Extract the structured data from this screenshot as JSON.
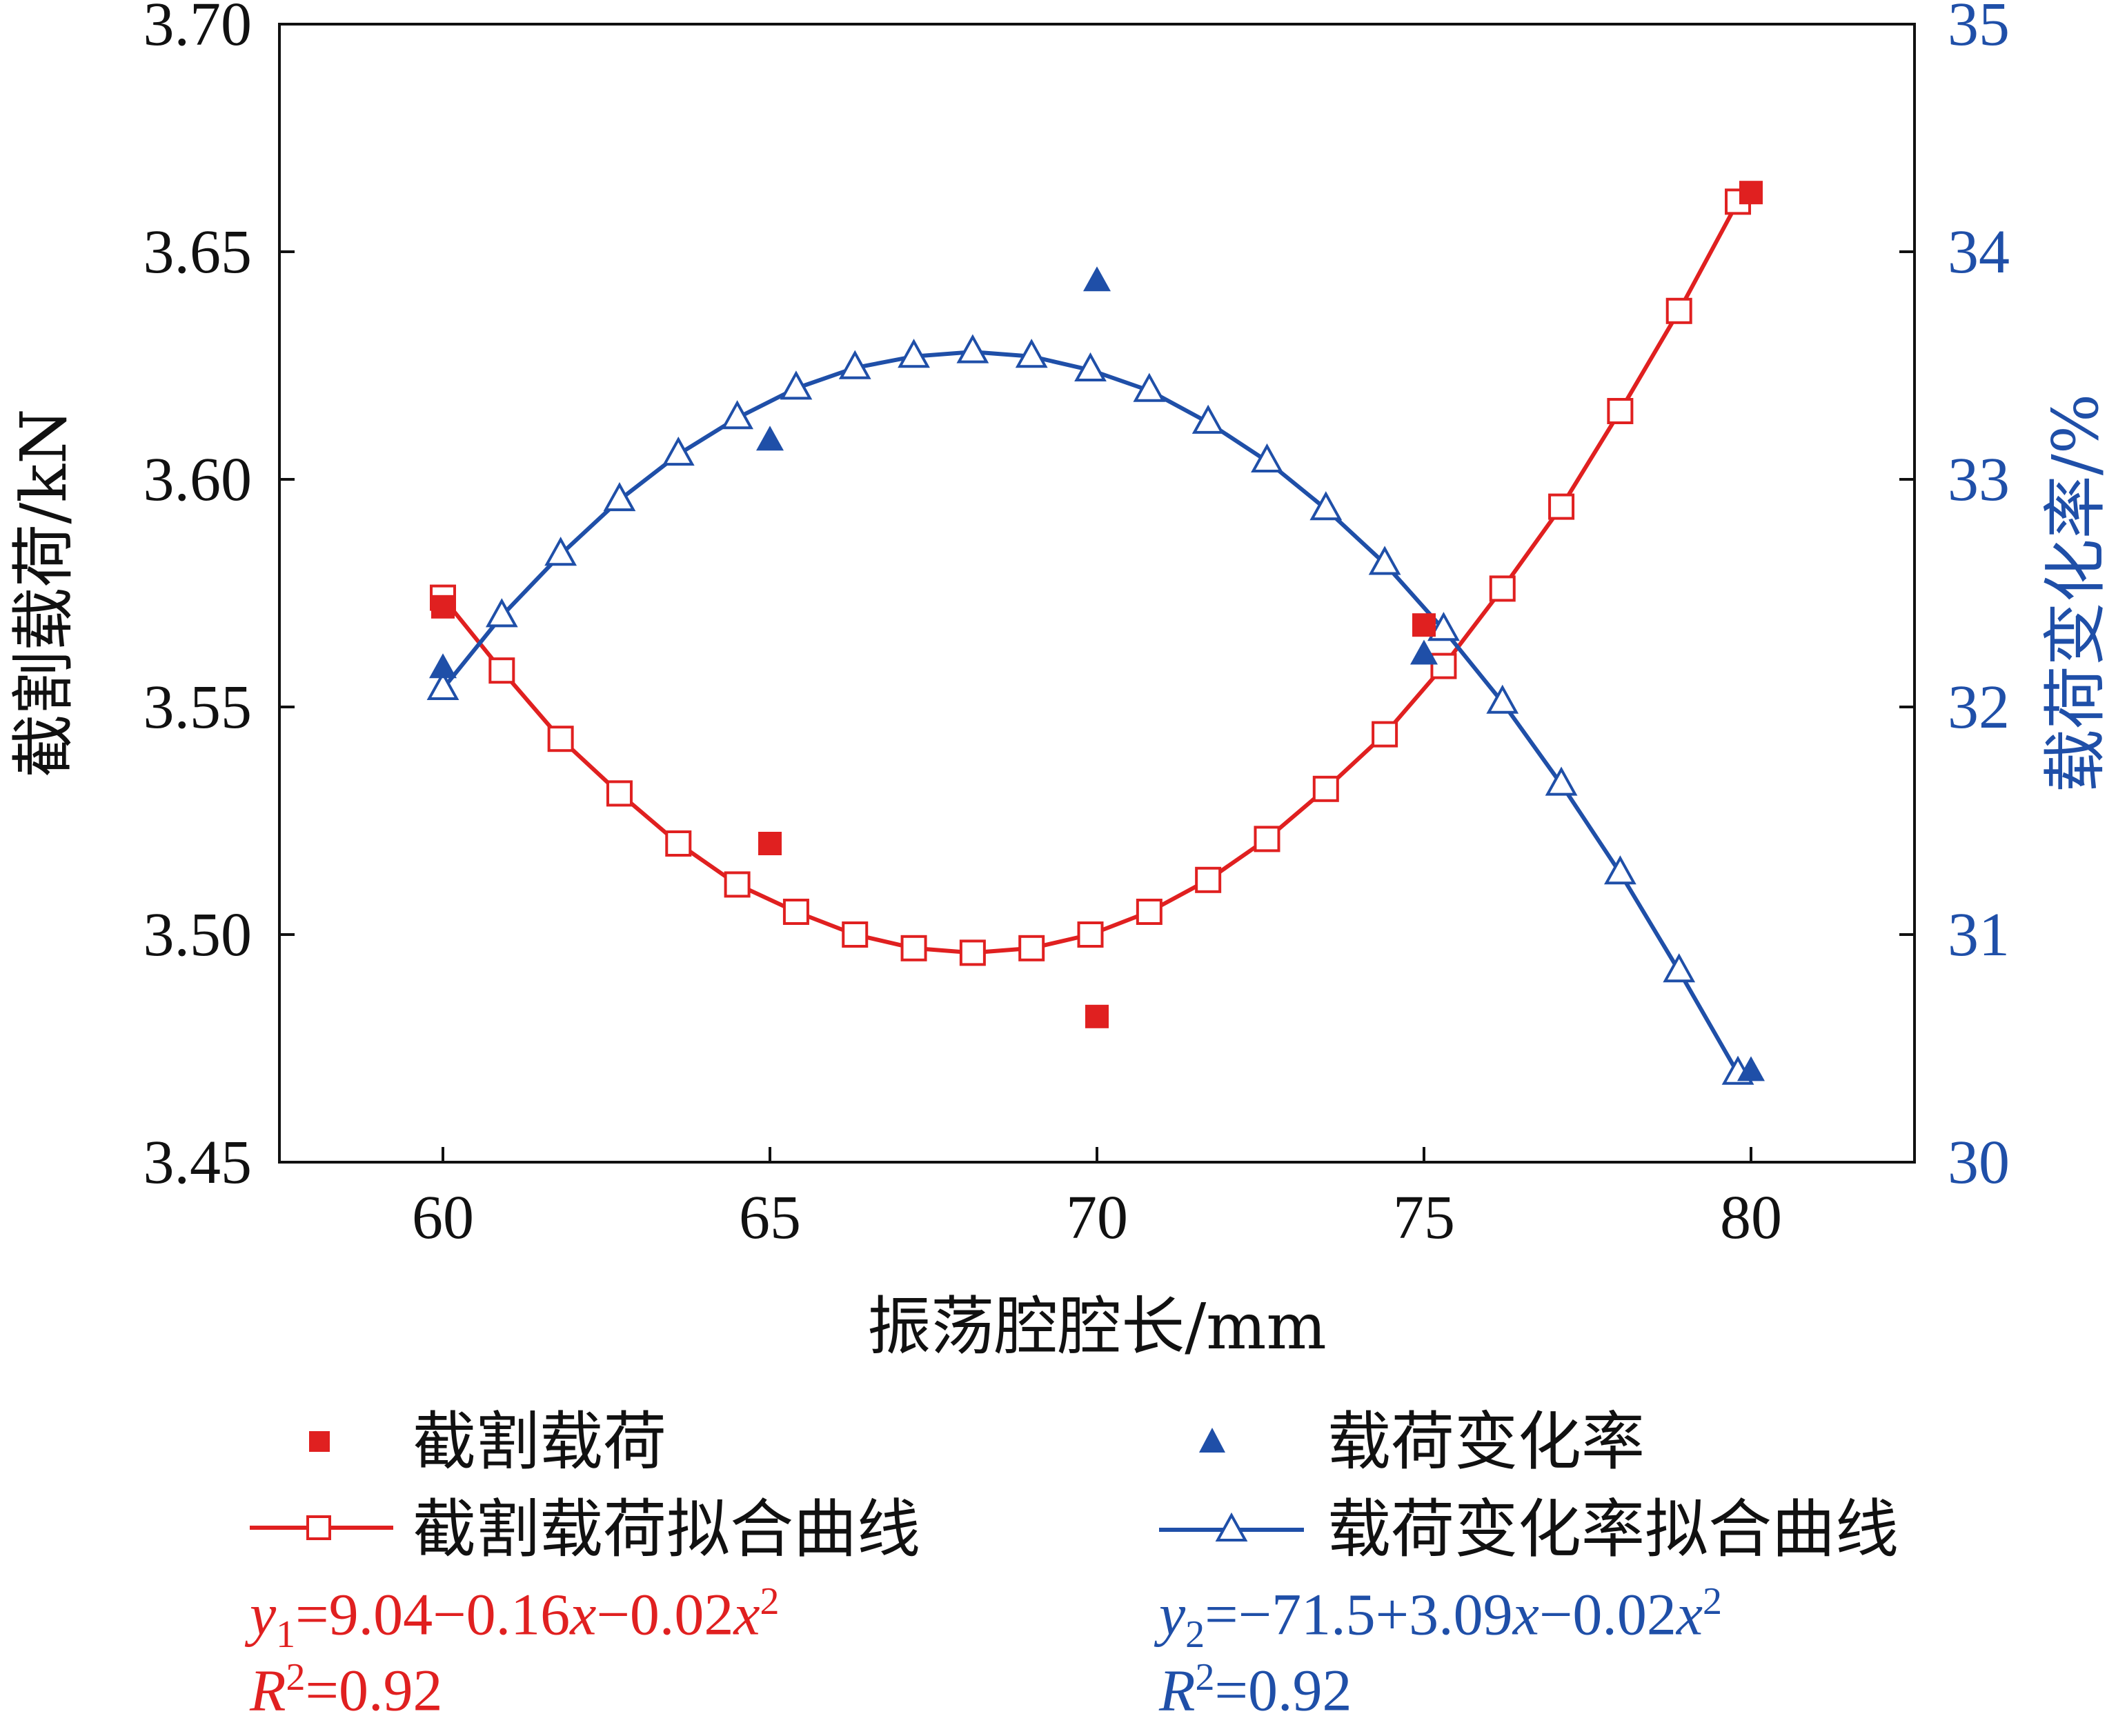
{
  "chart_data": {
    "type": "scatter",
    "xlabel": "振荡腔腔长/mm",
    "ylabel_left": "截割载荷/kN",
    "ylabel_right": "载荷变化率/%",
    "xlim": [
      57.5,
      82.5
    ],
    "ylim_left": [
      3.45,
      3.7
    ],
    "ylim_right": [
      30,
      35
    ],
    "x_ticks": [
      60,
      65,
      70,
      75,
      80
    ],
    "y_ticks_left": [
      "3.45",
      "3.50",
      "3.55",
      "3.60",
      "3.65",
      "3.70"
    ],
    "y_ticks_right": [
      "30",
      "31",
      "32",
      "33",
      "34",
      "35"
    ],
    "grid": false,
    "colors": {
      "red": "#e02020",
      "blue": "#1f4fa8"
    },
    "series": [
      {
        "name": "截割载荷",
        "axis": "left",
        "marker": "filled-square",
        "x": [
          60,
          65,
          70,
          75,
          80
        ],
        "y": [
          3.572,
          3.52,
          3.482,
          3.568,
          3.663
        ]
      },
      {
        "name": "载荷变化率",
        "axis": "right",
        "marker": "filled-triangle",
        "x": [
          60,
          65,
          70,
          75,
          80
        ],
        "y": [
          32.17,
          33.17,
          33.87,
          32.23,
          30.4
        ]
      },
      {
        "name": "截割载荷拟合曲线",
        "axis": "left",
        "marker": "open-square",
        "x": [
          60.0,
          60.9,
          61.8,
          62.7,
          63.6,
          64.5,
          65.4,
          66.3,
          67.2,
          68.1,
          69.0,
          69.9,
          70.8,
          71.7,
          72.6,
          73.5,
          74.4,
          75.3,
          76.2,
          77.1,
          78.0,
          78.9,
          79.8
        ],
        "y": [
          3.574,
          3.558,
          3.543,
          3.531,
          3.52,
          3.511,
          3.505,
          3.5,
          3.497,
          3.496,
          3.497,
          3.5,
          3.505,
          3.512,
          3.521,
          3.532,
          3.544,
          3.559,
          3.576,
          3.594,
          3.615,
          3.637,
          3.661
        ]
      },
      {
        "name": "载荷变化率拟合曲线",
        "axis": "right",
        "marker": "open-triangle",
        "x": [
          60.0,
          60.9,
          61.8,
          62.7,
          63.6,
          64.5,
          65.4,
          66.3,
          67.2,
          68.1,
          69.0,
          69.9,
          70.8,
          71.7,
          72.6,
          73.5,
          74.4,
          75.3,
          76.2,
          77.1,
          78.0,
          78.9,
          79.8
        ],
        "y": [
          32.08,
          32.4,
          32.67,
          32.91,
          33.11,
          33.27,
          33.4,
          33.49,
          33.54,
          33.56,
          33.54,
          33.48,
          33.39,
          33.25,
          33.08,
          32.87,
          32.63,
          32.34,
          32.02,
          31.66,
          31.27,
          30.84,
          30.39
        ]
      }
    ],
    "annotations": {
      "eq1": {
        "y_sym": "y",
        "sub": "1",
        "body_a": "=9.04−0.16",
        "x_sym": "x",
        "body_b": "−0.02",
        "x2_sym": "x",
        "sup": "2"
      },
      "r1": {
        "r_sym": "R",
        "sup": "2",
        "value": "=0.92"
      },
      "eq2": {
        "y_sym": "y",
        "sub": "2",
        "body_a": "=−71.5+3.09",
        "x_sym": "x",
        "body_b": "−0.02",
        "x2_sym": "x",
        "sup": "2"
      },
      "r2": {
        "r_sym": "R",
        "sup": "2",
        "value": "=0.92"
      }
    }
  }
}
